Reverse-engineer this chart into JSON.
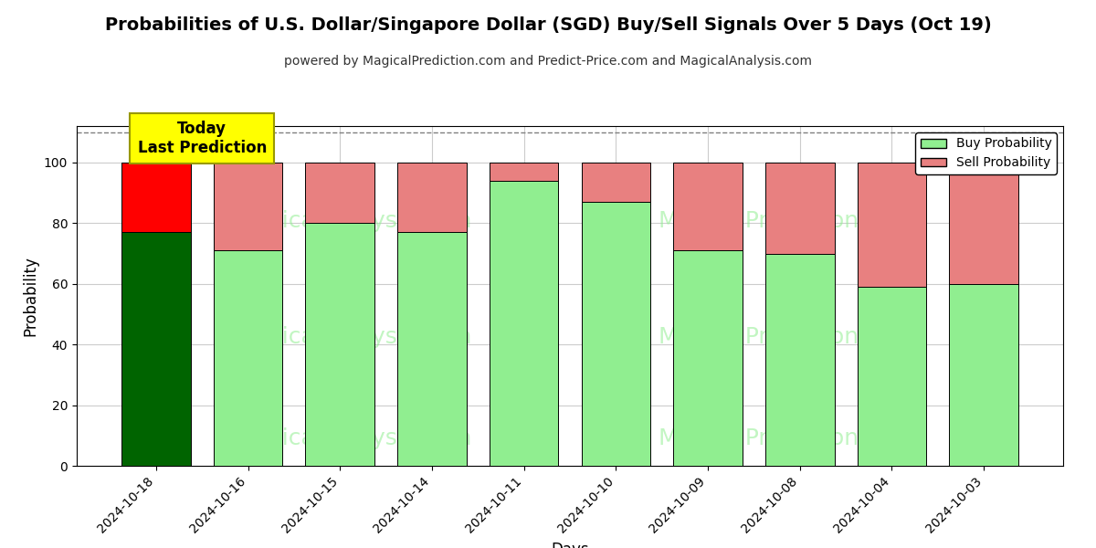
{
  "title": "Probabilities of U.S. Dollar/Singapore Dollar (SGD) Buy/Sell Signals Over 5 Days (Oct 19)",
  "subtitle": "powered by MagicalPrediction.com and Predict-Price.com and MagicalAnalysis.com",
  "xlabel": "Days",
  "ylabel": "Probability",
  "categories": [
    "2024-10-18",
    "2024-10-16",
    "2024-10-15",
    "2024-10-14",
    "2024-10-11",
    "2024-10-10",
    "2024-10-09",
    "2024-10-08",
    "2024-10-04",
    "2024-10-03"
  ],
  "buy_values": [
    77,
    71,
    80,
    77,
    94,
    87,
    71,
    70,
    59,
    60
  ],
  "sell_values": [
    23,
    29,
    20,
    23,
    6,
    13,
    29,
    30,
    41,
    40
  ],
  "buy_colors": [
    "#006400",
    "#90EE90",
    "#90EE90",
    "#90EE90",
    "#90EE90",
    "#90EE90",
    "#90EE90",
    "#90EE90",
    "#90EE90",
    "#90EE90"
  ],
  "sell_colors": [
    "#FF0000",
    "#E88080",
    "#E88080",
    "#E88080",
    "#E88080",
    "#E88080",
    "#E88080",
    "#E88080",
    "#E88080",
    "#E88080"
  ],
  "buy_legend_color": "#90EE90",
  "sell_legend_color": "#E88080",
  "today_box_color": "#FFFF00",
  "today_text": "Today\nLast Prediction",
  "ylim": [
    0,
    112
  ],
  "yticks": [
    0,
    20,
    40,
    60,
    80,
    100
  ],
  "dashed_line_y": 110,
  "background_color": "#ffffff",
  "grid_color": "#cccccc",
  "bar_edge_color": "#000000",
  "bar_width": 0.75,
  "title_fontsize": 14,
  "subtitle_fontsize": 10,
  "axis_label_fontsize": 12,
  "tick_fontsize": 10,
  "legend_fontsize": 10,
  "watermark_color": "#90EE90",
  "watermark_alpha": 0.55
}
